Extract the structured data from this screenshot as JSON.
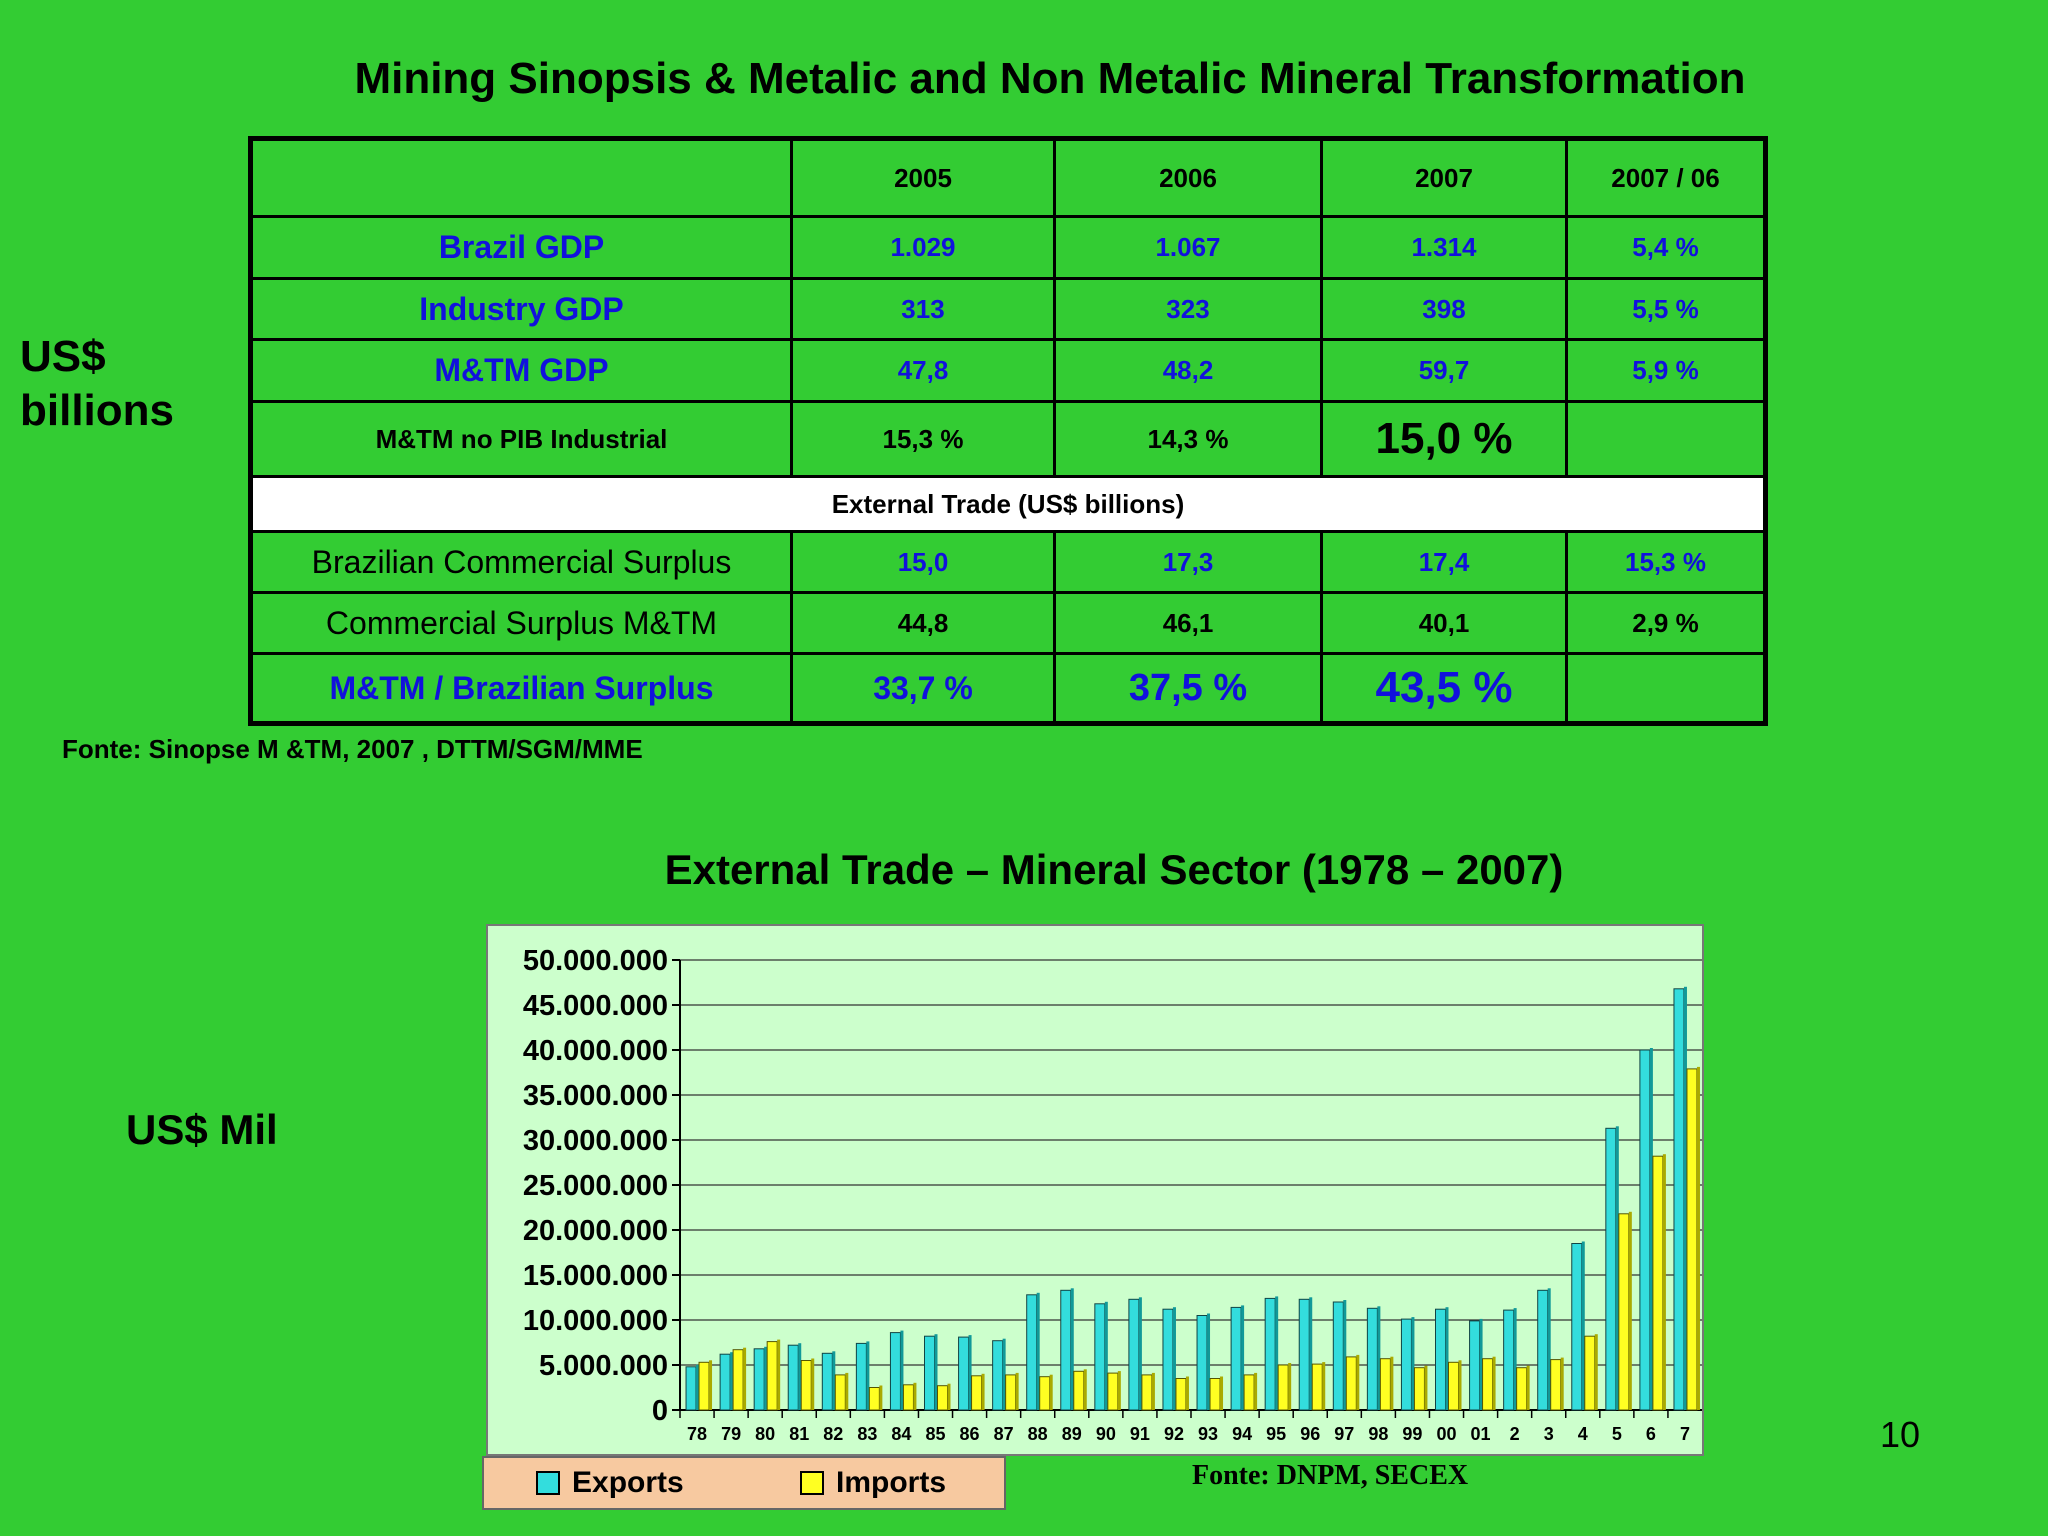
{
  "title": "Mining Sinopsis & Metalic and Non Metalic Mineral Transformation",
  "side_unit_line1": "US$",
  "side_unit_line2": "billions",
  "table": {
    "header": [
      "",
      "2005",
      "2006",
      "2007",
      "2007 / 06"
    ],
    "rows": [
      {
        "label": "Brazil GDP",
        "v": [
          "1.029",
          "1.067",
          "1.314",
          "5,4 %"
        ]
      },
      {
        "label": "Industry GDP",
        "v": [
          "313",
          "323",
          "398",
          "5,5 %"
        ]
      },
      {
        "label": "M&TM GDP",
        "v": [
          "47,8",
          "48,2",
          "59,7",
          "5,9 %"
        ]
      },
      {
        "label": "M&TM no PIB Industrial",
        "v": [
          "15,3 %",
          "14,3 %",
          "15,0 %",
          ""
        ]
      },
      {
        "section": "External Trade (US$ billions)"
      },
      {
        "label": "Brazilian Commercial Surplus",
        "v": [
          "15,0",
          "17,3",
          "17,4",
          "15,3 %"
        ]
      },
      {
        "label": "Commercial Surplus M&TM",
        "v": [
          "44,8",
          "46,1",
          "40,1",
          "2,9 %"
        ]
      },
      {
        "label": "M&TM / Brazilian Surplus",
        "v": [
          "33,7 %",
          "37,5 %",
          "43,5 %",
          ""
        ]
      }
    ]
  },
  "source1": "Fonte: Sinopse M &TM, 2007 , DTTM/SGM/MME",
  "chart_title": "External Trade – Mineral Sector (1978 – 2007)",
  "chart_unit": "US$ Mil",
  "legend": {
    "exports": "Exports",
    "imports": "Imports"
  },
  "source2": "Fonte: DNPM, SECEX",
  "page_number": "10",
  "colors": {
    "background": "#33cc33",
    "exports": "#33dddd",
    "imports": "#ffff22",
    "plot_bg": "#ccffcc",
    "blue_text": "#1111dd"
  },
  "chart_data": {
    "type": "bar",
    "categories": [
      "78",
      "79",
      "80",
      "81",
      "82",
      "83",
      "84",
      "85",
      "86",
      "87",
      "88",
      "89",
      "90",
      "91",
      "92",
      "93",
      "94",
      "95",
      "96",
      "97",
      "98",
      "99",
      "00",
      "01",
      "2",
      "3",
      "4",
      "5",
      "6",
      "7"
    ],
    "series": [
      {
        "name": "Exports",
        "values": [
          4800000,
          6200000,
          6800000,
          7200000,
          6300000,
          7400000,
          8600000,
          8200000,
          8100000,
          7700000,
          12800000,
          13300000,
          11800000,
          12300000,
          11200000,
          10500000,
          11400000,
          12400000,
          12300000,
          12000000,
          11300000,
          10100000,
          11200000,
          9900000,
          11100000,
          13300000,
          18500000,
          31300000,
          40000000,
          46800000
        ]
      },
      {
        "name": "Imports",
        "values": [
          5300000,
          6700000,
          7600000,
          5500000,
          3900000,
          2500000,
          2800000,
          2700000,
          3800000,
          3900000,
          3700000,
          4300000,
          4100000,
          3900000,
          3500000,
          3500000,
          3900000,
          5000000,
          5100000,
          5900000,
          5700000,
          4700000,
          5300000,
          5700000,
          4700000,
          5600000,
          8200000,
          21800000,
          28200000,
          37900000
        ]
      }
    ],
    "y_ticks": [
      "0",
      "5.000.000",
      "10.000.000",
      "15.000.000",
      "20.000.000",
      "25.000.000",
      "30.000.000",
      "35.000.000",
      "40.000.000",
      "45.000.000",
      "50.000.000"
    ],
    "ylim": [
      0,
      50000000
    ],
    "grid": true,
    "legend_position": "bottom-left"
  }
}
